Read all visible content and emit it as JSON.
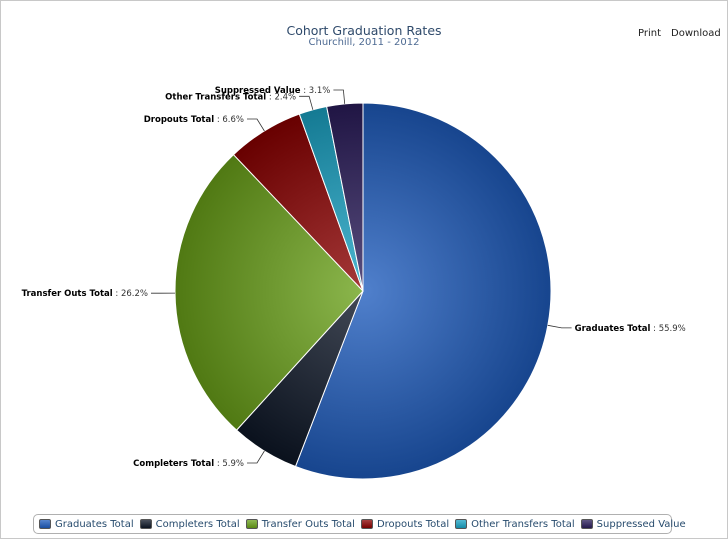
{
  "toolbar": {
    "print_label": "Print",
    "download_label": "Download"
  },
  "chart_data": {
    "type": "pie",
    "title": "Cohort Graduation Rates",
    "subtitle": "Churchill, 2011 - 2012",
    "value_suffix": "%",
    "legend_position": "bottom",
    "slices": [
      {
        "name": "Graduates Total",
        "value": 55.9,
        "color": "#1f5cbd"
      },
      {
        "name": "Completers Total",
        "value": 5.9,
        "color": "#0d1626"
      },
      {
        "name": "Transfer Outs Total",
        "value": 26.2,
        "color": "#6aa119"
      },
      {
        "name": "Dropouts Total",
        "value": 6.6,
        "color": "#8b0000"
      },
      {
        "name": "Other Transfers Total",
        "value": 2.4,
        "color": "#1aa3c4"
      },
      {
        "name": "Suppressed Value",
        "value": 3.1,
        "color": "#2a1c5a"
      }
    ]
  }
}
